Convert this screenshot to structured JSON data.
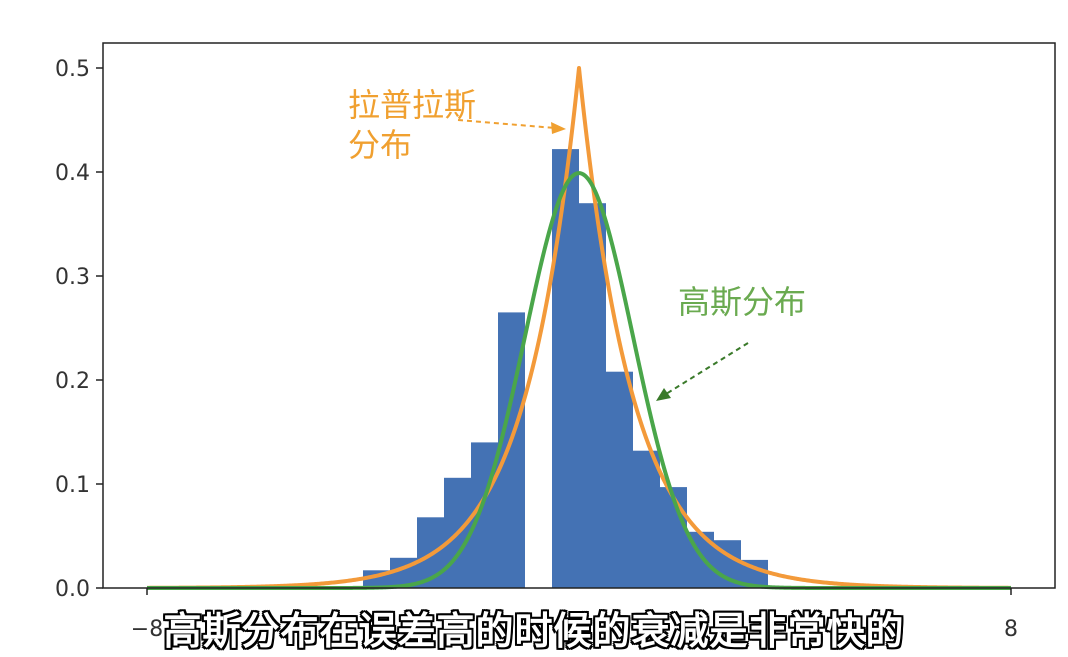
{
  "chart_data": {
    "type": "bar",
    "xlim": [
      -8,
      8
    ],
    "ylim": [
      0,
      0.52
    ],
    "x_ticks": [
      -8,
      8
    ],
    "x_tick_labels": [
      "−8",
      "8"
    ],
    "y_ticks": [
      0.0,
      0.1,
      0.2,
      0.3,
      0.4,
      0.5
    ],
    "y_tick_labels": [
      "0.0",
      "0.1",
      "0.2",
      "0.3",
      "0.4",
      "0.5"
    ],
    "bin_width": 0.5,
    "bins": [
      {
        "x0": -4.0,
        "height": 0.017
      },
      {
        "x0": -3.5,
        "height": 0.029
      },
      {
        "x0": -3.0,
        "height": 0.068
      },
      {
        "x0": -2.5,
        "height": 0.106
      },
      {
        "x0": -2.0,
        "height": 0.14
      },
      {
        "x0": -1.5,
        "height": 0.265
      },
      {
        "x0": -0.5,
        "height": 0.422
      },
      {
        "x0": 0.0,
        "height": 0.37
      },
      {
        "x0": 0.5,
        "height": 0.208
      },
      {
        "x0": 1.0,
        "height": 0.132
      },
      {
        "x0": 1.5,
        "height": 0.097
      },
      {
        "x0": 2.0,
        "height": 0.054
      },
      {
        "x0": 2.5,
        "height": 0.046
      },
      {
        "x0": 3.0,
        "height": 0.027
      }
    ],
    "series": [
      {
        "type": "line",
        "kind": "laplace",
        "color": "#f39a3a",
        "mu": 0,
        "b": 1
      },
      {
        "type": "line",
        "kind": "gaussian",
        "color": "#4aa64a",
        "mu": 0,
        "sigma": 1
      }
    ],
    "annotations": {
      "laplace_line1": "拉普拉斯",
      "laplace_line2": "分布",
      "gauss": "高斯分布"
    },
    "colors": {
      "bars": "#4472b4",
      "laplace": "#f39a3a",
      "gauss": "#4aa64a",
      "laplace_text": "#f0a030",
      "gauss_text": "#6aaa50"
    }
  },
  "subtitle": "高斯分布在误差高的时候的衰减是非常快的"
}
